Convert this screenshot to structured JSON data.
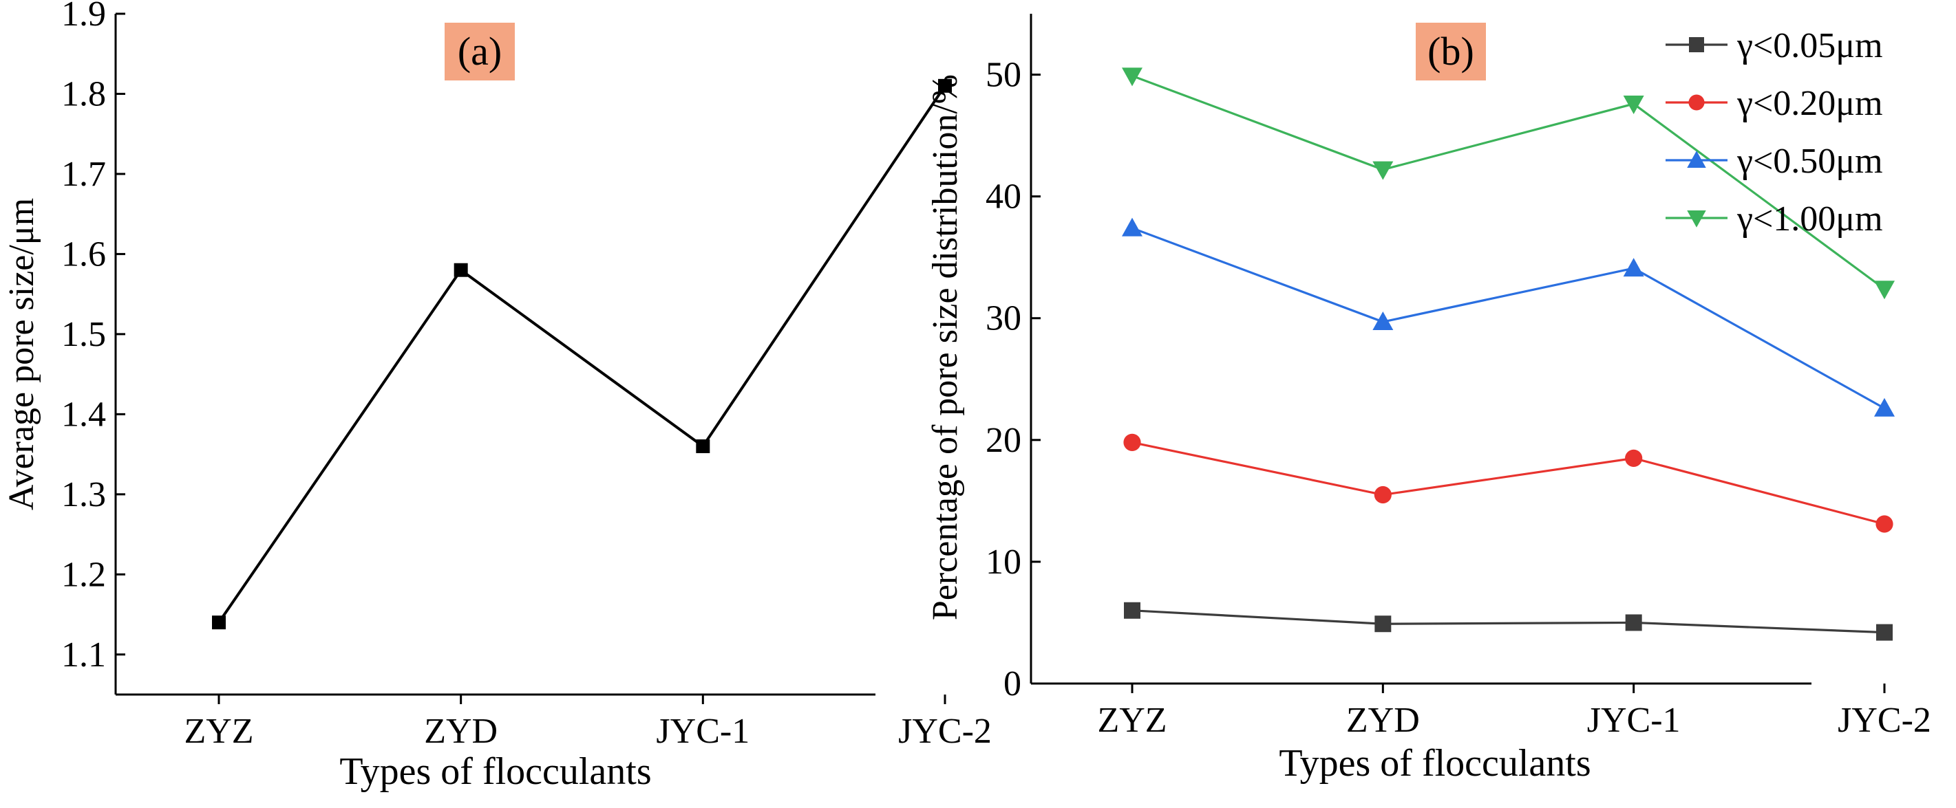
{
  "chart_data": [
    {
      "type": "line",
      "panel_label": "(a)",
      "categories": [
        "ZYZ",
        "ZYD",
        "JYC-1",
        "JYC-2"
      ],
      "series": [
        {
          "name": "Average pore size",
          "color": "#000000",
          "marker": "square",
          "values": [
            1.14,
            1.58,
            1.36,
            1.81
          ]
        }
      ],
      "xlabel": "Types of flocculants",
      "ylabel": "Average pore size/μm",
      "ylim": [
        1.05,
        1.9
      ],
      "yticks": [
        1.1,
        1.2,
        1.3,
        1.4,
        1.5,
        1.6,
        1.7,
        1.8,
        1.9
      ],
      "label_bg": "#f4a582",
      "grid": false
    },
    {
      "type": "line",
      "panel_label": "(b)",
      "categories": [
        "ZYZ",
        "ZYD",
        "JYC-1",
        "JYC-2"
      ],
      "series": [
        {
          "name": "γ<0.05μm",
          "color": "#3c3c3c",
          "marker": "square",
          "values": [
            6.0,
            4.9,
            5.0,
            4.2
          ]
        },
        {
          "name": "γ<0.20μm",
          "color": "#e8332e",
          "marker": "circle",
          "values": [
            19.8,
            15.5,
            18.5,
            13.1
          ]
        },
        {
          "name": "γ<0.50μm",
          "color": "#2a6fe0",
          "marker": "triangle-up",
          "values": [
            37.4,
            29.7,
            34.1,
            22.6
          ]
        },
        {
          "name": "γ<1.00μm",
          "color": "#3cb35a",
          "marker": "triangle-down",
          "values": [
            49.9,
            42.2,
            47.6,
            32.4
          ]
        }
      ],
      "xlabel": "Types of flocculants",
      "ylabel": "Percentage of pore size distribution/%",
      "ylim": [
        0,
        55
      ],
      "yticks": [
        0,
        10,
        20,
        30,
        40,
        50
      ],
      "legend_position": "top-right",
      "label_bg": "#f4a582",
      "grid": false
    }
  ]
}
